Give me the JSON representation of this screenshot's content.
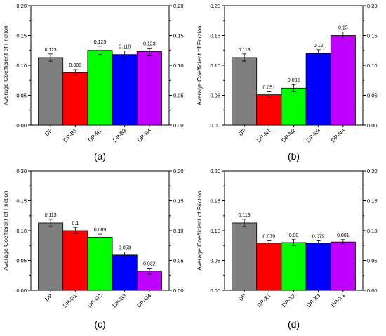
{
  "colors": {
    "DP": "#7f7f7f",
    "1": "#ff0000",
    "2": "#00ff00",
    "3": "#0000ff",
    "4": "#bf00ff",
    "axis": "#000000"
  },
  "chart_data": [
    {
      "type": "bar",
      "panel_label": "(a)",
      "categories": [
        "DP",
        "DP-B1",
        "DP-B2",
        "DP-B3",
        "DP-B4"
      ],
      "values": [
        0.113,
        0.088,
        0.125,
        0.118,
        0.123
      ],
      "value_labels": [
        "0.113",
        "0.088",
        "0.125",
        "0.118",
        "0.123"
      ],
      "errors": [
        0.006,
        0.005,
        0.007,
        0.006,
        0.006
      ],
      "ylabel": "Average Coefficient of Friction",
      "ylim": [
        0,
        0.2
      ],
      "yticks": [
        "0.00",
        "0.05",
        "0.10",
        "0.15",
        "0.20"
      ],
      "right_axis_ticks": true
    },
    {
      "type": "bar",
      "panel_label": "(b)",
      "categories": [
        "DP",
        "DP-N1",
        "DP-N2",
        "DP-N3",
        "DP-N4"
      ],
      "values": [
        0.113,
        0.051,
        0.062,
        0.12,
        0.15
      ],
      "value_labels": [
        "0.113",
        "0.051",
        "0.062",
        "0.12",
        "0.15"
      ],
      "errors": [
        0.006,
        0.005,
        0.006,
        0.006,
        0.006
      ],
      "ylabel": "Average Coefficient of Friction",
      "ylim": [
        0,
        0.2
      ],
      "yticks": [
        "0.00",
        "0.05",
        "0.10",
        "0.15",
        "0.20"
      ],
      "right_axis_ticks": true
    },
    {
      "type": "bar",
      "panel_label": "(c)",
      "categories": [
        "DP",
        "DP-G1",
        "DP-G2",
        "DP-G3",
        "DP-G4"
      ],
      "values": [
        0.113,
        0.1,
        0.089,
        0.059,
        0.032
      ],
      "value_labels": [
        "0.113",
        "0.1",
        "0.089",
        "0.059",
        "0.032"
      ],
      "errors": [
        0.006,
        0.005,
        0.005,
        0.005,
        0.005
      ],
      "ylabel": "Average Coefficient of Friction",
      "ylim": [
        0,
        0.2
      ],
      "yticks": [
        "0.00",
        "0.05",
        "0.10",
        "0.15",
        "0.20"
      ],
      "right_axis_ticks": true
    },
    {
      "type": "bar",
      "panel_label": "(d)",
      "categories": [
        "DP",
        "DP-X1",
        "DP-X2",
        "DP-X3",
        "DP-X4"
      ],
      "values": [
        0.113,
        0.079,
        0.08,
        0.079,
        0.081
      ],
      "value_labels": [
        "0.113",
        "0.079",
        "0.08",
        "0.079",
        "0.081"
      ],
      "errors": [
        0.006,
        0.004,
        0.005,
        0.004,
        0.004
      ],
      "ylabel": "Average Coefficient of Friction",
      "ylim": [
        0,
        0.2
      ],
      "yticks": [
        "0.00",
        "0.05",
        "0.10",
        "0.15",
        "0.20"
      ],
      "right_axis_ticks": true
    }
  ]
}
